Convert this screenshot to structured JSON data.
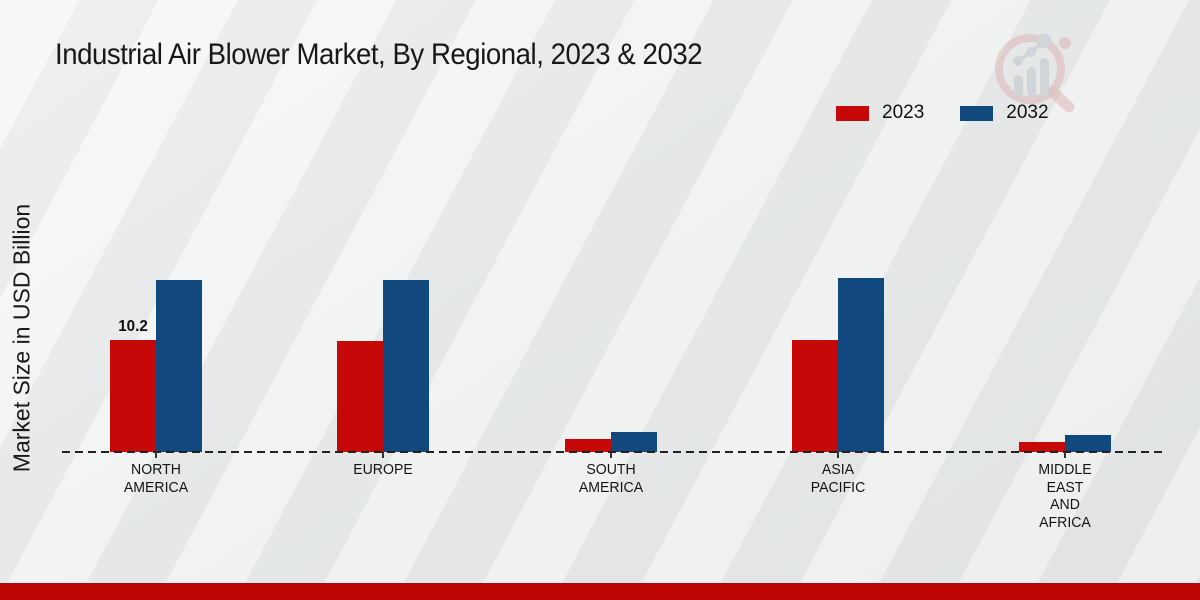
{
  "page": {
    "title": "Industrial Air Blower Market, By Regional, 2023 & 2032",
    "ylabel": "Market Size in USD Billion"
  },
  "colors": {
    "red_2023": "#c60808",
    "blue_2032": "#11497f",
    "bottom_band": "#c00505",
    "baseline": "#222222",
    "watermark_pink": "#d9a4a4",
    "watermark_gray": "#c2c5cb"
  },
  "legend": {
    "position": "top-right",
    "items": [
      {
        "label": "2023",
        "color": "#c60808"
      },
      {
        "label": "2032",
        "color": "#11497f"
      }
    ]
  },
  "chart_data": {
    "type": "bar",
    "title": "Industrial Air Blower Market, By Regional, 2023 & 2032",
    "xlabel": "",
    "ylabel": "Market Size in USD Billion",
    "categories": [
      "NORTH AMERICA",
      "EUROPE",
      "SOUTH AMERICA",
      "ASIA PACIFIC",
      "MIDDLE EAST AND AFRICA"
    ],
    "category_lines": [
      [
        "NORTH",
        "AMERICA"
      ],
      [
        "EUROPE"
      ],
      [
        "SOUTH",
        "AMERICA"
      ],
      [
        "ASIA",
        "PACIFIC"
      ],
      [
        "MIDDLE",
        "EAST",
        "AND",
        "AFRICA"
      ]
    ],
    "series": [
      {
        "name": "2023",
        "color": "#c60808",
        "values": [
          10.2,
          10.1,
          1.2,
          10.2,
          0.9
        ],
        "point_labels": [
          "10.2",
          null,
          null,
          null,
          null
        ]
      },
      {
        "name": "2032",
        "color": "#11497f",
        "values": [
          15.6,
          15.6,
          1.8,
          15.8,
          1.5
        ],
        "point_labels": [
          null,
          null,
          null,
          null,
          null
        ]
      }
    ],
    "ylim": [
      0,
      18
    ],
    "grid": false,
    "y_tick_labels_visible": false,
    "legend_position": "top-right",
    "baseline_style": "dashed",
    "unit": "USD Billion"
  }
}
